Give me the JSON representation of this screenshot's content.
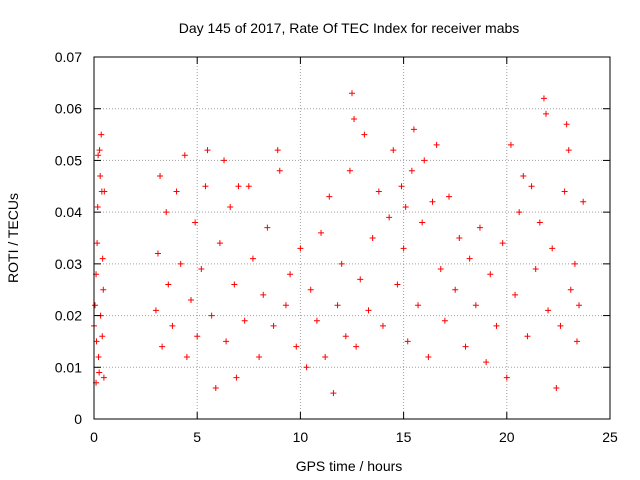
{
  "chart_data": {
    "type": "scatter",
    "title": "Day 145 of 2017, Rate Of TEC Index for receiver mabs",
    "xlabel": "GPS time / hours",
    "ylabel": "ROTI / TECUs",
    "xlim": [
      0,
      25
    ],
    "ylim": [
      0,
      0.07
    ],
    "grid": true,
    "marker": "+",
    "color": "#ff0000",
    "x_ticks": [
      0,
      5,
      10,
      15,
      20,
      25
    ],
    "x_tick_labels": [
      "0",
      "5",
      "10",
      "15",
      "20",
      "25"
    ],
    "y_ticks": [
      0,
      0.01,
      0.02,
      0.03,
      0.04,
      0.05,
      0.06,
      0.07
    ],
    "y_tick_labels": [
      "0",
      "0.01",
      "0.02",
      "0.03",
      "0.04",
      "0.05",
      "0.06",
      "0.07"
    ],
    "series": [
      {
        "name": "ROTI",
        "points": [
          [
            0.0,
            0.018
          ],
          [
            0.05,
            0.022
          ],
          [
            0.1,
            0.028
          ],
          [
            0.12,
            0.015
          ],
          [
            0.15,
            0.034
          ],
          [
            0.18,
            0.041
          ],
          [
            0.2,
            0.051
          ],
          [
            0.22,
            0.012
          ],
          [
            0.25,
            0.009
          ],
          [
            0.27,
            0.052
          ],
          [
            0.3,
            0.047
          ],
          [
            0.32,
            0.02
          ],
          [
            0.35,
            0.055
          ],
          [
            0.38,
            0.044
          ],
          [
            0.4,
            0.016
          ],
          [
            0.42,
            0.031
          ],
          [
            0.45,
            0.025
          ],
          [
            0.48,
            0.008
          ],
          [
            0.5,
            0.044
          ],
          [
            0.1,
            0.007
          ],
          [
            3.0,
            0.021
          ],
          [
            3.1,
            0.032
          ],
          [
            3.2,
            0.047
          ],
          [
            3.3,
            0.014
          ],
          [
            3.5,
            0.04
          ],
          [
            3.6,
            0.026
          ],
          [
            3.8,
            0.018
          ],
          [
            4.0,
            0.044
          ],
          [
            4.2,
            0.03
          ],
          [
            4.4,
            0.051
          ],
          [
            4.5,
            0.012
          ],
          [
            4.7,
            0.023
          ],
          [
            4.9,
            0.038
          ],
          [
            5.0,
            0.016
          ],
          [
            5.2,
            0.029
          ],
          [
            5.4,
            0.045
          ],
          [
            5.5,
            0.052
          ],
          [
            5.7,
            0.02
          ],
          [
            5.9,
            0.006
          ],
          [
            6.1,
            0.034
          ],
          [
            6.3,
            0.05
          ],
          [
            6.4,
            0.015
          ],
          [
            6.6,
            0.041
          ],
          [
            6.8,
            0.026
          ],
          [
            6.9,
            0.008
          ],
          [
            7.0,
            0.045
          ],
          [
            7.3,
            0.019
          ],
          [
            7.5,
            0.045
          ],
          [
            7.7,
            0.031
          ],
          [
            8.0,
            0.012
          ],
          [
            8.2,
            0.024
          ],
          [
            8.4,
            0.037
          ],
          [
            8.7,
            0.018
          ],
          [
            8.9,
            0.052
          ],
          [
            9.0,
            0.048
          ],
          [
            9.3,
            0.022
          ],
          [
            9.5,
            0.028
          ],
          [
            9.8,
            0.014
          ],
          [
            10.0,
            0.033
          ],
          [
            10.3,
            0.01
          ],
          [
            10.5,
            0.025
          ],
          [
            10.8,
            0.019
          ],
          [
            11.0,
            0.036
          ],
          [
            11.2,
            0.012
          ],
          [
            11.4,
            0.043
          ],
          [
            11.6,
            0.005
          ],
          [
            11.8,
            0.022
          ],
          [
            12.0,
            0.03
          ],
          [
            12.2,
            0.016
          ],
          [
            12.4,
            0.048
          ],
          [
            12.5,
            0.063
          ],
          [
            12.6,
            0.058
          ],
          [
            12.7,
            0.014
          ],
          [
            12.9,
            0.027
          ],
          [
            13.1,
            0.055
          ],
          [
            13.3,
            0.021
          ],
          [
            13.5,
            0.035
          ],
          [
            13.8,
            0.044
          ],
          [
            14.0,
            0.018
          ],
          [
            14.3,
            0.039
          ],
          [
            14.5,
            0.052
          ],
          [
            14.7,
            0.026
          ],
          [
            14.9,
            0.045
          ],
          [
            15.0,
            0.033
          ],
          [
            15.1,
            0.041
          ],
          [
            15.2,
            0.015
          ],
          [
            15.4,
            0.048
          ],
          [
            15.5,
            0.056
          ],
          [
            15.7,
            0.022
          ],
          [
            15.9,
            0.038
          ],
          [
            16.0,
            0.05
          ],
          [
            16.2,
            0.012
          ],
          [
            16.4,
            0.042
          ],
          [
            16.6,
            0.053
          ],
          [
            16.8,
            0.029
          ],
          [
            17.0,
            0.019
          ],
          [
            17.2,
            0.043
          ],
          [
            17.5,
            0.025
          ],
          [
            17.7,
            0.035
          ],
          [
            18.0,
            0.014
          ],
          [
            18.2,
            0.031
          ],
          [
            18.5,
            0.022
          ],
          [
            18.7,
            0.037
          ],
          [
            19.0,
            0.011
          ],
          [
            19.2,
            0.028
          ],
          [
            19.5,
            0.018
          ],
          [
            19.8,
            0.034
          ],
          [
            20.0,
            0.008
          ],
          [
            20.2,
            0.053
          ],
          [
            20.4,
            0.024
          ],
          [
            20.6,
            0.04
          ],
          [
            20.8,
            0.047
          ],
          [
            21.0,
            0.016
          ],
          [
            21.2,
            0.045
          ],
          [
            21.4,
            0.029
          ],
          [
            21.6,
            0.038
          ],
          [
            21.8,
            0.062
          ],
          [
            21.9,
            0.059
          ],
          [
            22.0,
            0.021
          ],
          [
            22.2,
            0.033
          ],
          [
            22.4,
            0.006
          ],
          [
            22.6,
            0.018
          ],
          [
            22.8,
            0.044
          ],
          [
            22.9,
            0.057
          ],
          [
            23.0,
            0.052
          ],
          [
            23.1,
            0.025
          ],
          [
            23.3,
            0.03
          ],
          [
            23.4,
            0.015
          ],
          [
            23.5,
            0.022
          ],
          [
            23.7,
            0.042
          ]
        ]
      }
    ]
  }
}
